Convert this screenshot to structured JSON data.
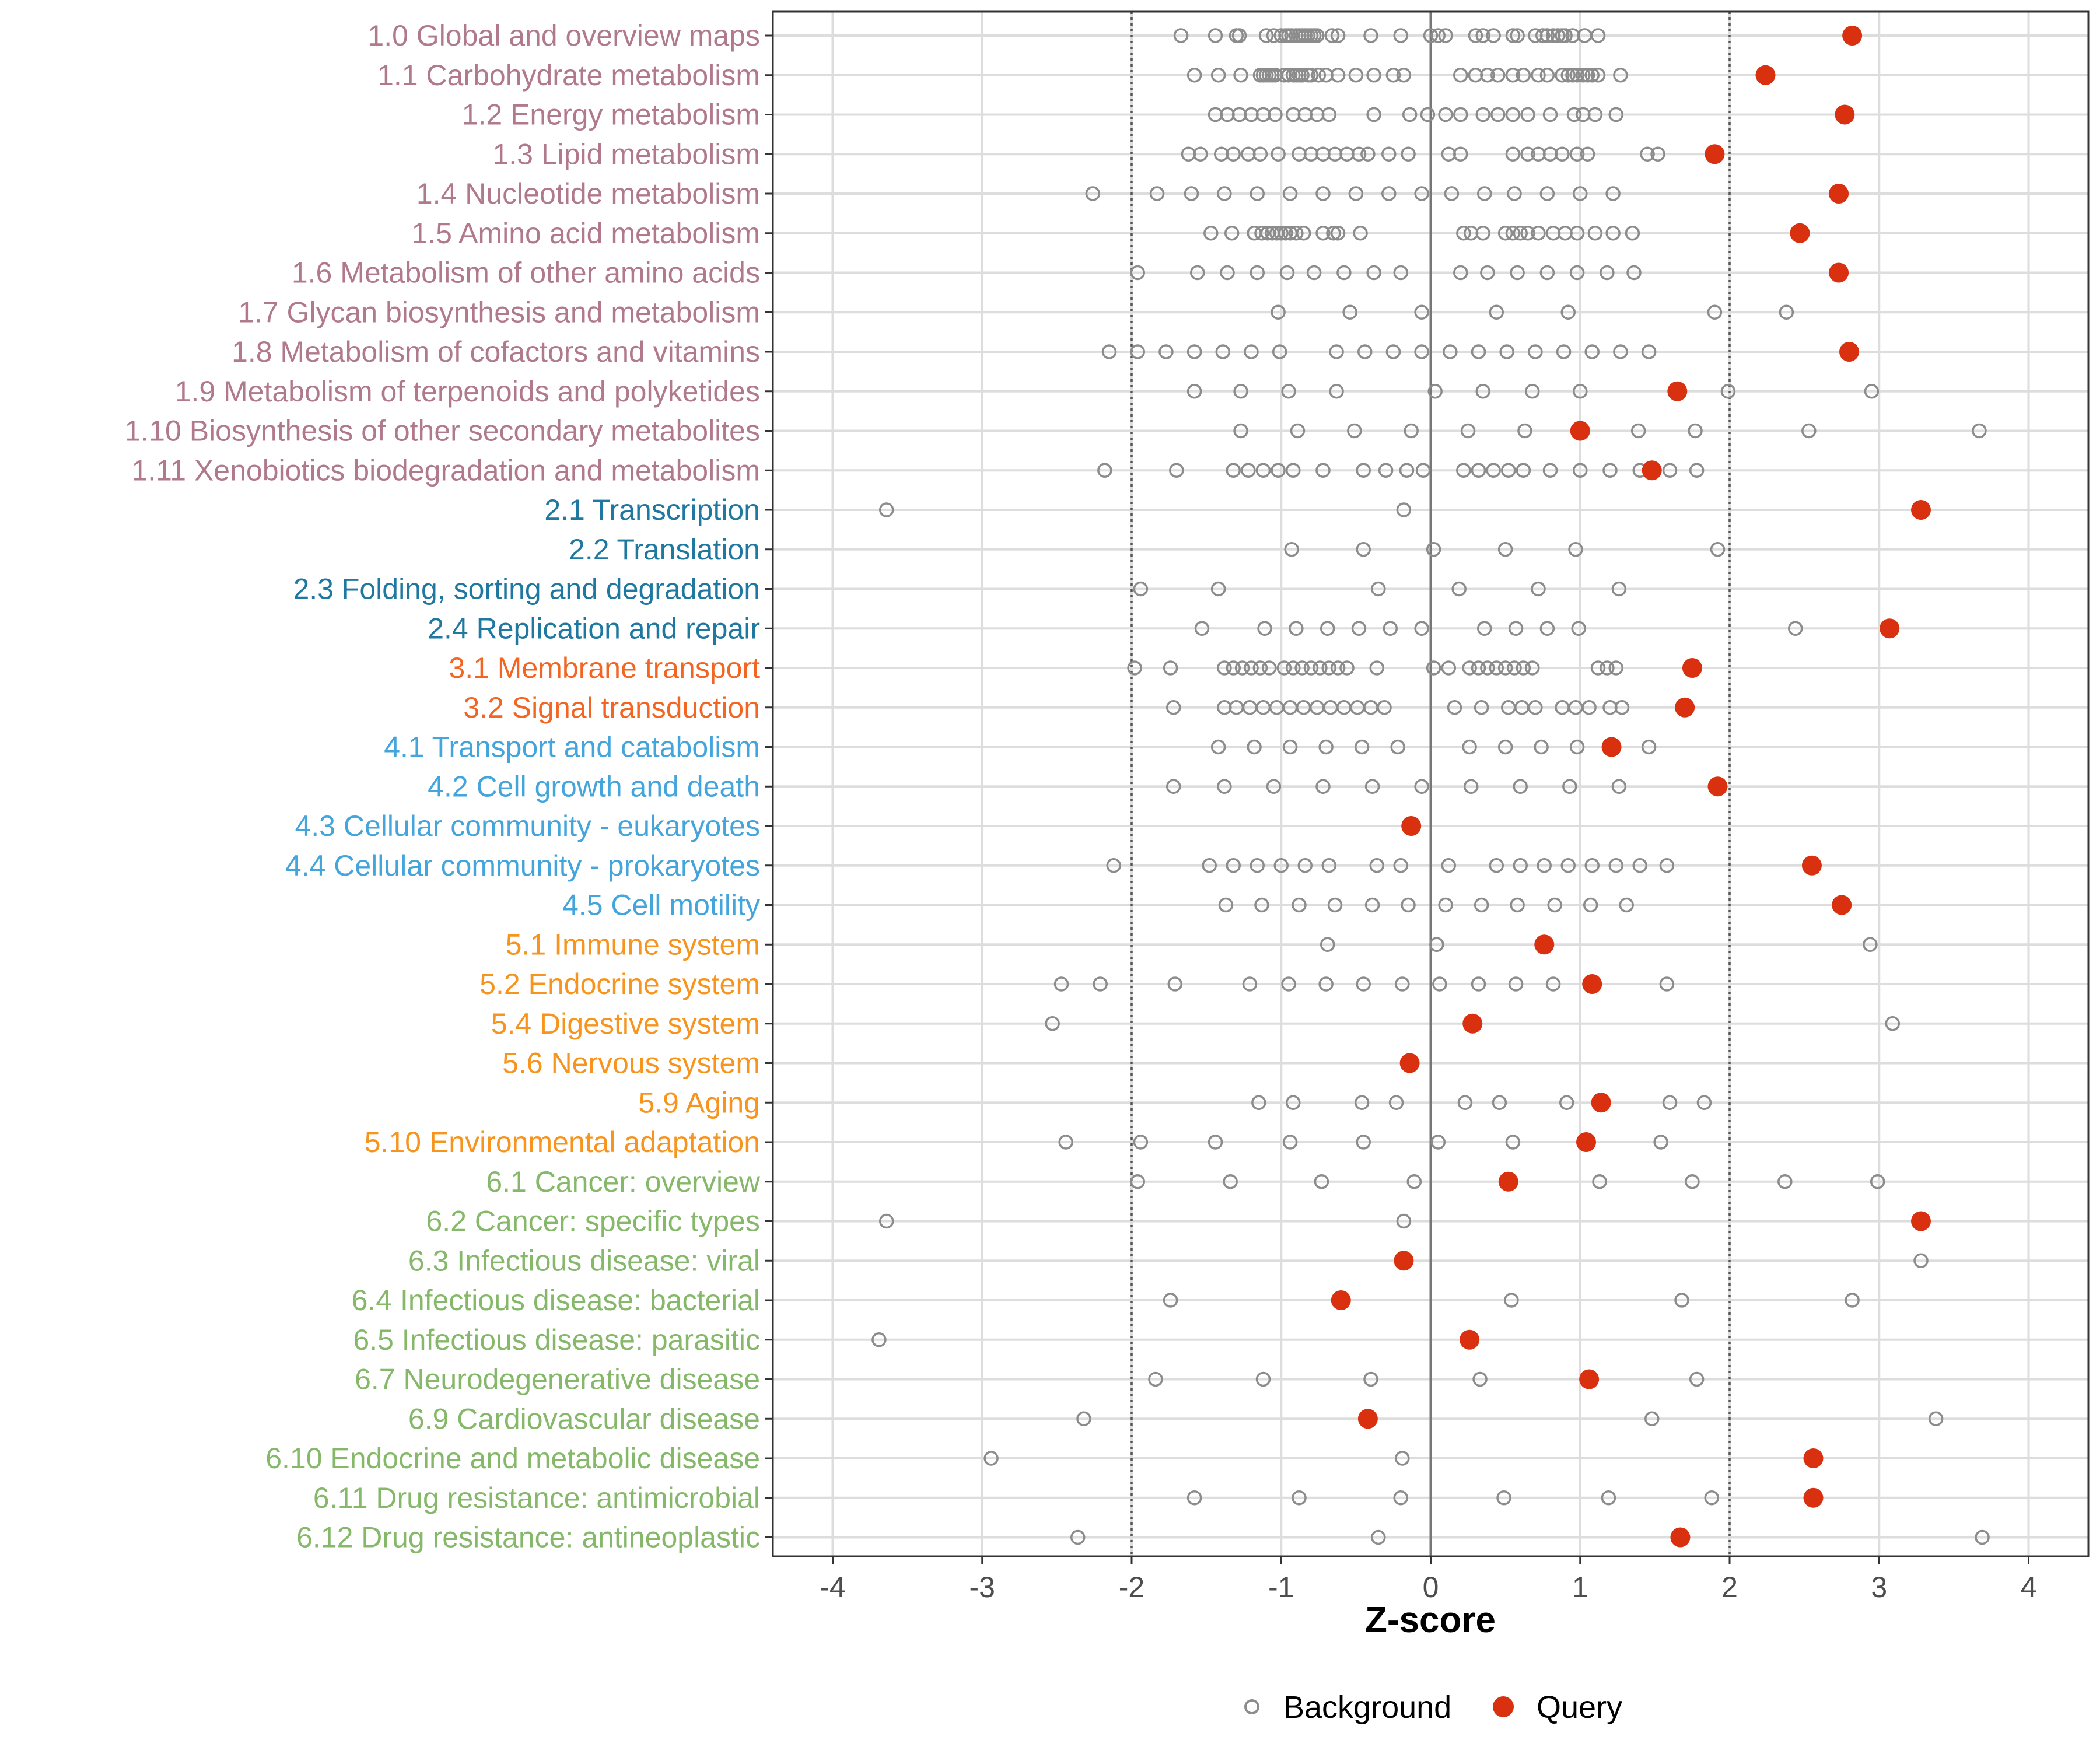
{
  "chart_data": {
    "type": "scatter",
    "title": "",
    "xlabel": "Z-score",
    "ylabel": "",
    "xlim": [
      -4.4,
      4.4
    ],
    "xticks": [
      -4,
      -3,
      -2,
      -1,
      0,
      1,
      2,
      3,
      4
    ],
    "xtick_labels": [
      "-4",
      "-3",
      "-2",
      "-1",
      "0",
      "1",
      "2",
      "3",
      "4"
    ],
    "reference_lines": {
      "dotted": [
        -2,
        2
      ],
      "solid": [
        0
      ]
    },
    "legend": {
      "position": "bottom",
      "entries": [
        {
          "name": "Background",
          "marker": "open-circle",
          "color": "#8c8c8c"
        },
        {
          "name": "Query",
          "marker": "filled-circle",
          "color": "#d9300f"
        }
      ]
    },
    "group_colors": {
      "1": "#b07a8c",
      "2": "#1f78a0",
      "3": "#f26522",
      "4": "#44a5dc",
      "5": "#f7941d",
      "6": "#86b86a"
    },
    "categories": [
      {
        "label": "1.0 Global and overview maps",
        "group": "1",
        "query": 2.82,
        "background": [
          -1.67,
          -1.44,
          -1.3,
          -1.28,
          -1.1,
          -1.05,
          -1.0,
          -0.97,
          -0.95,
          -0.93,
          -0.9,
          -0.88,
          -0.86,
          -0.84,
          -0.82,
          -0.8,
          -0.78,
          -0.76,
          -0.66,
          -0.62,
          -0.4,
          -0.2,
          0.0,
          0.05,
          0.1,
          0.3,
          0.35,
          0.42,
          0.55,
          0.58,
          0.7,
          0.75,
          0.78,
          0.82,
          0.85,
          0.88,
          0.9,
          0.95,
          1.03,
          1.12
        ]
      },
      {
        "label": "1.1 Carbohydrate metabolism",
        "group": "1",
        "query": 2.24,
        "background": [
          -1.58,
          -1.42,
          -1.27,
          -1.14,
          -1.12,
          -1.1,
          -1.08,
          -1.06,
          -1.04,
          -0.98,
          -0.95,
          -0.92,
          -0.9,
          -0.88,
          -0.86,
          -0.82,
          -0.8,
          -0.75,
          -0.7,
          -0.62,
          -0.5,
          -0.38,
          -0.25,
          -0.18,
          0.2,
          0.3,
          0.38,
          0.45,
          0.55,
          0.62,
          0.72,
          0.78,
          0.88,
          0.92,
          0.95,
          0.98,
          1.02,
          1.05,
          1.08,
          1.12,
          1.27
        ]
      },
      {
        "label": "1.2 Energy metabolism",
        "group": "1",
        "query": 2.77,
        "background": [
          -1.44,
          -1.36,
          -1.28,
          -1.2,
          -1.12,
          -1.04,
          -0.92,
          -0.84,
          -0.76,
          -0.68,
          -0.38,
          -0.14,
          -0.02,
          0.1,
          0.2,
          0.35,
          0.45,
          0.55,
          0.65,
          0.8,
          0.96,
          1.02,
          1.1,
          1.24
        ]
      },
      {
        "label": "1.3 Lipid metabolism",
        "group": "1",
        "query": 1.9,
        "background": [
          -1.62,
          -1.54,
          -1.4,
          -1.32,
          -1.22,
          -1.14,
          -1.02,
          -0.88,
          -0.8,
          -0.72,
          -0.64,
          -0.56,
          -0.48,
          -0.42,
          -0.28,
          -0.15,
          0.12,
          0.2,
          0.55,
          0.65,
          0.72,
          0.8,
          0.88,
          0.98,
          1.05,
          1.45,
          1.52
        ]
      },
      {
        "label": "1.4 Nucleotide metabolism",
        "group": "1",
        "query": 2.73,
        "background": [
          -2.26,
          -1.83,
          -1.6,
          -1.38,
          -1.16,
          -0.94,
          -0.72,
          -0.5,
          -0.28,
          -0.06,
          0.14,
          0.36,
          0.56,
          0.78,
          1.0,
          1.22
        ]
      },
      {
        "label": "1.5 Amino acid metabolism",
        "group": "1",
        "query": 2.47,
        "background": [
          -1.47,
          -1.33,
          -1.18,
          -1.13,
          -1.09,
          -1.06,
          -1.03,
          -1.0,
          -0.97,
          -0.94,
          -0.9,
          -0.85,
          -0.72,
          -0.65,
          -0.62,
          -0.47,
          0.22,
          0.27,
          0.35,
          0.5,
          0.55,
          0.6,
          0.65,
          0.72,
          0.82,
          0.9,
          0.98,
          1.1,
          1.22,
          1.35
        ]
      },
      {
        "label": "1.6 Metabolism of other amino acids",
        "group": "1",
        "query": 2.73,
        "background": [
          -1.96,
          -1.56,
          -1.36,
          -1.16,
          -0.96,
          -0.78,
          -0.58,
          -0.38,
          -0.2,
          0.2,
          0.38,
          0.58,
          0.78,
          0.98,
          1.18,
          1.36
        ]
      },
      {
        "label": "1.7 Glycan biosynthesis and metabolism",
        "group": "1",
        "query": null,
        "background": [
          -1.02,
          -0.54,
          -0.06,
          0.44,
          0.92,
          1.9,
          2.38
        ]
      },
      {
        "label": "1.8 Metabolism of cofactors and vitamins",
        "group": "1",
        "query": 2.8,
        "background": [
          -2.15,
          -1.96,
          -1.77,
          -1.58,
          -1.39,
          -1.2,
          -1.01,
          -0.63,
          -0.44,
          -0.25,
          -0.06,
          0.13,
          0.32,
          0.51,
          0.7,
          0.89,
          1.08,
          1.27,
          1.46
        ]
      },
      {
        "label": "1.9 Metabolism of terpenoids and polyketides",
        "group": "1",
        "query": 1.65,
        "background": [
          -1.58,
          -1.27,
          -0.95,
          -0.63,
          0.03,
          0.35,
          0.68,
          1.0,
          1.99,
          2.95
        ]
      },
      {
        "label": "1.10 Biosynthesis of other secondary metabolites",
        "group": "1",
        "query": 1.0,
        "background": [
          -1.27,
          -0.89,
          -0.51,
          -0.13,
          0.25,
          0.63,
          1.39,
          1.77,
          2.53,
          3.67
        ]
      },
      {
        "label": "1.11 Xenobiotics biodegradation and metabolism",
        "group": "1",
        "query": 1.48,
        "background": [
          -2.18,
          -1.7,
          -1.32,
          -1.22,
          -1.12,
          -1.02,
          -0.92,
          -0.72,
          -0.45,
          -0.3,
          -0.16,
          -0.05,
          0.22,
          0.32,
          0.42,
          0.52,
          0.62,
          0.8,
          1.0,
          1.2,
          1.4,
          1.6,
          1.78
        ]
      },
      {
        "label": "2.1 Transcription",
        "group": "2",
        "query": 3.28,
        "background": [
          -3.64,
          -0.18
        ]
      },
      {
        "label": "2.2 Translation",
        "group": "2",
        "query": null,
        "background": [
          -0.93,
          -0.45,
          0.02,
          0.5,
          0.97,
          1.92
        ]
      },
      {
        "label": "2.3 Folding, sorting and degradation",
        "group": "2",
        "query": null,
        "background": [
          -1.94,
          -1.42,
          -0.35,
          0.19,
          0.72,
          1.26
        ]
      },
      {
        "label": "2.4 Replication and repair",
        "group": "2",
        "query": 3.07,
        "background": [
          -1.53,
          -1.11,
          -0.9,
          -0.69,
          -0.48,
          -0.27,
          -0.06,
          0.36,
          0.57,
          0.78,
          0.99,
          2.44
        ]
      },
      {
        "label": "3.1 Membrane transport",
        "group": "3",
        "query": 1.75,
        "background": [
          -1.98,
          -1.74,
          -1.38,
          -1.32,
          -1.26,
          -1.2,
          -1.14,
          -1.08,
          -0.98,
          -0.92,
          -0.86,
          -0.8,
          -0.74,
          -0.68,
          -0.62,
          -0.56,
          -0.36,
          0.02,
          0.12,
          0.26,
          0.32,
          0.38,
          0.44,
          0.5,
          0.56,
          0.62,
          0.68,
          1.12,
          1.18,
          1.24
        ]
      },
      {
        "label": "3.2 Signal transduction",
        "group": "3",
        "query": 1.7,
        "background": [
          -1.72,
          -1.38,
          -1.3,
          -1.21,
          -1.12,
          -1.03,
          -0.94,
          -0.85,
          -0.76,
          -0.67,
          -0.58,
          -0.49,
          -0.4,
          -0.31,
          0.16,
          0.34,
          0.52,
          0.61,
          0.7,
          0.88,
          0.97,
          1.06,
          1.2,
          1.28
        ]
      },
      {
        "label": "4.1 Transport and catabolism",
        "group": "4",
        "query": 1.21,
        "background": [
          -1.42,
          -1.18,
          -0.94,
          -0.7,
          -0.46,
          -0.22,
          0.26,
          0.5,
          0.74,
          0.98,
          1.46
        ]
      },
      {
        "label": "4.2 Cell growth and death",
        "group": "4",
        "query": 1.92,
        "background": [
          -1.72,
          -1.38,
          -1.05,
          -0.72,
          -0.39,
          -0.06,
          0.27,
          0.6,
          0.93,
          1.26
        ]
      },
      {
        "label": "4.3 Cellular community - eukaryotes",
        "group": "4",
        "query": -0.13,
        "background": []
      },
      {
        "label": "4.4 Cellular community - prokaryotes",
        "group": "4",
        "query": 2.55,
        "background": [
          -2.12,
          -1.48,
          -1.32,
          -1.16,
          -1.0,
          -0.84,
          -0.68,
          -0.36,
          -0.2,
          0.12,
          0.44,
          0.6,
          0.76,
          0.92,
          1.08,
          1.24,
          1.4,
          1.58
        ]
      },
      {
        "label": "4.5 Cell motility",
        "group": "4",
        "query": 2.75,
        "background": [
          -1.37,
          -1.13,
          -0.88,
          -0.64,
          -0.39,
          -0.15,
          0.1,
          0.34,
          0.58,
          0.83,
          1.07,
          1.31
        ]
      },
      {
        "label": "5.1 Immune system",
        "group": "5",
        "query": 0.76,
        "background": [
          -0.69,
          0.04,
          2.94
        ]
      },
      {
        "label": "5.2 Endocrine system",
        "group": "5",
        "query": 1.08,
        "background": [
          -2.47,
          -2.21,
          -1.71,
          -1.21,
          -0.95,
          -0.7,
          -0.45,
          -0.19,
          0.06,
          0.32,
          0.57,
          0.82,
          1.58
        ]
      },
      {
        "label": "5.4 Digestive system",
        "group": "5",
        "query": 0.28,
        "background": [
          -2.53,
          3.09
        ]
      },
      {
        "label": "5.6 Nervous system",
        "group": "5",
        "query": -0.14,
        "background": []
      },
      {
        "label": "5.9 Aging",
        "group": "5",
        "query": 1.14,
        "background": [
          -1.15,
          -0.92,
          -0.46,
          -0.23,
          0.23,
          0.46,
          0.91,
          1.6,
          1.83
        ]
      },
      {
        "label": "5.10 Environmental adaptation",
        "group": "5",
        "query": 1.04,
        "background": [
          -2.44,
          -1.94,
          -1.44,
          -0.94,
          -0.45,
          0.05,
          0.55,
          1.54
        ]
      },
      {
        "label": "6.1 Cancer: overview",
        "group": "6",
        "query": 0.52,
        "background": [
          -1.96,
          -1.34,
          -0.73,
          -0.11,
          1.13,
          1.75,
          2.37,
          2.99
        ]
      },
      {
        "label": "6.2 Cancer: specific types",
        "group": "6",
        "query": 3.28,
        "background": [
          -3.64,
          -0.18
        ]
      },
      {
        "label": "6.3 Infectious disease: viral",
        "group": "6",
        "query": -0.18,
        "background": [
          3.28
        ]
      },
      {
        "label": "6.4 Infectious disease: bacterial",
        "group": "6",
        "query": -0.6,
        "background": [
          -1.74,
          0.54,
          1.68,
          2.82
        ]
      },
      {
        "label": "6.5 Infectious disease: parasitic",
        "group": "6",
        "query": 0.26,
        "background": [
          -3.69
        ]
      },
      {
        "label": "6.7 Neurodegenerative disease",
        "group": "6",
        "query": 1.06,
        "background": [
          -1.84,
          -1.12,
          -0.4,
          0.33,
          1.78
        ]
      },
      {
        "label": "6.9 Cardiovascular disease",
        "group": "6",
        "query": -0.42,
        "background": [
          -2.32,
          1.48,
          3.38
        ]
      },
      {
        "label": "6.10 Endocrine and metabolic disease",
        "group": "6",
        "query": 2.56,
        "background": [
          -2.94,
          -0.19
        ]
      },
      {
        "label": "6.11 Drug resistance: antimicrobial",
        "group": "6",
        "query": 2.56,
        "background": [
          -1.58,
          -0.88,
          -0.2,
          0.49,
          1.19,
          1.88
        ]
      },
      {
        "label": "6.12 Drug resistance: antineoplastic",
        "group": "6",
        "query": 1.67,
        "background": [
          -2.36,
          -0.35,
          3.69
        ]
      }
    ]
  }
}
